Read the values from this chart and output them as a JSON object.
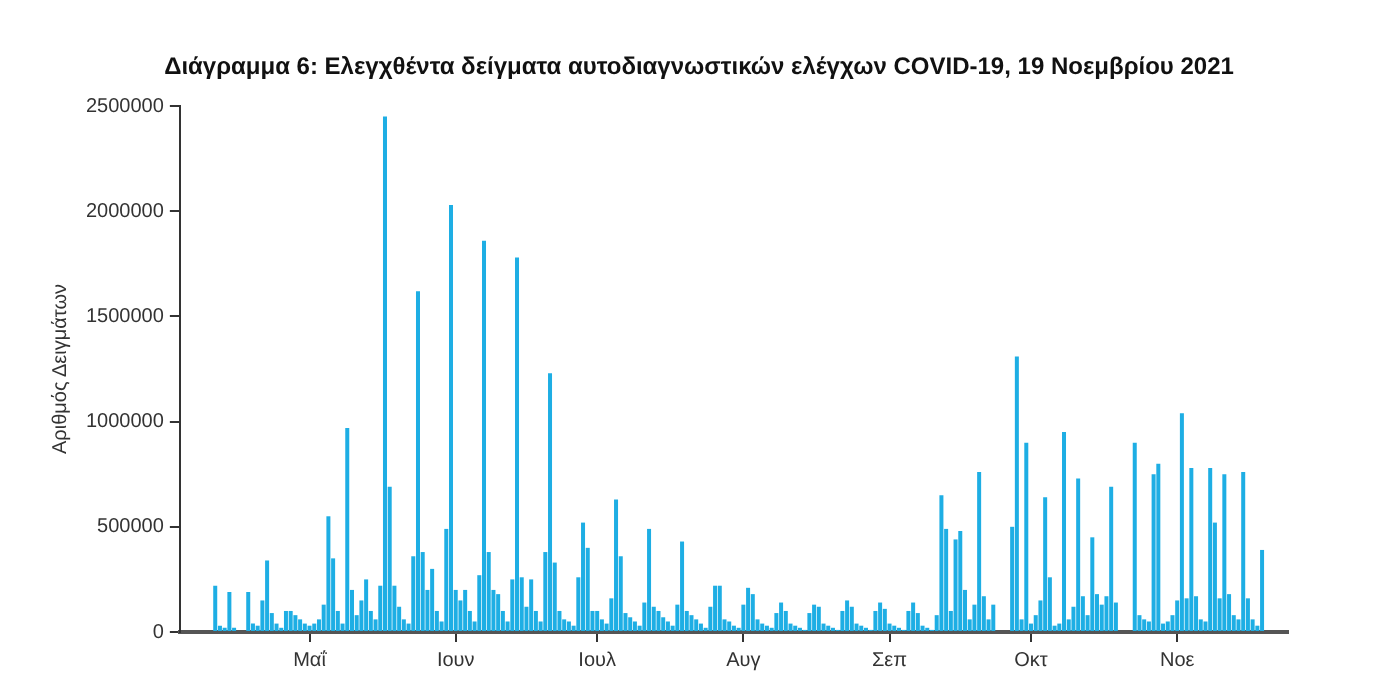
{
  "chart_data": {
    "type": "bar",
    "title": "Διάγραμμα 6: Ελεγχθέντα δείγματα αυτοδιαγνωστικών ελέγχων COVID-19, 19 Νοεμβρίου 2021",
    "ylabel": "Αριθμός Δειγμάτων",
    "color": "#1eaee4",
    "grid": false,
    "legend": false,
    "ylim": [
      0,
      2500000
    ],
    "yticks": [
      0,
      500000,
      1000000,
      1500000,
      2000000,
      2500000
    ],
    "categories": [
      null,
      null,
      null,
      null,
      null,
      null,
      null,
      null,
      null,
      null,
      null,
      null,
      null,
      null,
      null,
      null,
      null,
      null,
      null,
      null,
      null,
      null,
      null,
      null,
      null,
      null,
      null,
      "Μαΐ",
      null,
      null,
      null,
      null,
      null,
      null,
      null,
      null,
      null,
      null,
      null,
      null,
      null,
      null,
      null,
      null,
      null,
      null,
      null,
      null,
      null,
      null,
      null,
      null,
      null,
      null,
      null,
      null,
      null,
      null,
      "Ιουν",
      null,
      null,
      null,
      null,
      null,
      null,
      null,
      null,
      null,
      null,
      null,
      null,
      null,
      null,
      null,
      null,
      null,
      null,
      null,
      null,
      null,
      null,
      null,
      null,
      null,
      null,
      null,
      null,
      null,
      "Ιουλ",
      null,
      null,
      null,
      null,
      null,
      null,
      null,
      null,
      null,
      null,
      null,
      null,
      null,
      null,
      null,
      null,
      null,
      null,
      null,
      null,
      null,
      null,
      null,
      null,
      null,
      null,
      null,
      null,
      null,
      null,
      "Αυγ",
      null,
      null,
      null,
      null,
      null,
      null,
      null,
      null,
      null,
      null,
      null,
      null,
      null,
      null,
      null,
      null,
      null,
      null,
      null,
      null,
      null,
      null,
      null,
      null,
      null,
      null,
      null,
      null,
      null,
      null,
      "Σεπ",
      null,
      null,
      null,
      null,
      null,
      null,
      null,
      null,
      null,
      null,
      null,
      null,
      null,
      null,
      null,
      null,
      null,
      null,
      null,
      null,
      null,
      null,
      null,
      null,
      null,
      null,
      null,
      null,
      null,
      "Οκτ",
      null,
      null,
      null,
      null,
      null,
      null,
      null,
      null,
      null,
      null,
      null,
      null,
      null,
      null,
      null,
      null,
      null,
      null,
      null,
      null,
      null,
      null,
      null,
      null,
      null,
      null,
      null,
      null,
      null,
      null,
      "Νοε",
      null,
      null,
      null,
      null,
      null,
      null,
      null,
      null,
      null,
      null,
      null,
      null,
      null,
      null,
      null,
      null,
      null,
      null,
      null,
      null,
      null,
      null,
      null
    ],
    "values": [
      null,
      null,
      null,
      null,
      null,
      null,
      null,
      220000,
      30000,
      20000,
      190000,
      20000,
      0,
      0,
      190000,
      40000,
      30000,
      150000,
      340000,
      90000,
      40000,
      20000,
      100000,
      100000,
      80000,
      60000,
      40000,
      30000,
      40000,
      60000,
      130000,
      550000,
      350000,
      100000,
      40000,
      970000,
      200000,
      80000,
      150000,
      250000,
      100000,
      60000,
      220000,
      2450000,
      690000,
      220000,
      120000,
      60000,
      40000,
      360000,
      1620000,
      380000,
      200000,
      300000,
      100000,
      50000,
      490000,
      2030000,
      200000,
      150000,
      200000,
      100000,
      50000,
      270000,
      1860000,
      380000,
      200000,
      180000,
      100000,
      50000,
      250000,
      1780000,
      260000,
      120000,
      250000,
      100000,
      50000,
      380000,
      1230000,
      330000,
      100000,
      60000,
      50000,
      30000,
      260000,
      520000,
      400000,
      100000,
      100000,
      60000,
      40000,
      160000,
      630000,
      360000,
      90000,
      70000,
      50000,
      30000,
      140000,
      490000,
      120000,
      100000,
      70000,
      50000,
      30000,
      130000,
      430000,
      100000,
      80000,
      60000,
      40000,
      20000,
      120000,
      220000,
      220000,
      60000,
      50000,
      30000,
      20000,
      130000,
      210000,
      180000,
      60000,
      40000,
      30000,
      20000,
      90000,
      140000,
      100000,
      40000,
      30000,
      20000,
      10000,
      90000,
      130000,
      120000,
      40000,
      30000,
      20000,
      10000,
      100000,
      150000,
      120000,
      40000,
      30000,
      20000,
      10000,
      100000,
      140000,
      110000,
      40000,
      30000,
      20000,
      10000,
      100000,
      140000,
      90000,
      30000,
      20000,
      10000,
      80000,
      650000,
      490000,
      100000,
      440000,
      480000,
      200000,
      60000,
      130000,
      760000,
      170000,
      60000,
      130000,
      0,
      0,
      0,
      500000,
      1310000,
      60000,
      900000,
      40000,
      80000,
      150000,
      640000,
      260000,
      30000,
      40000,
      950000,
      60000,
      120000,
      730000,
      170000,
      80000,
      450000,
      180000,
      130000,
      170000,
      690000,
      140000,
      0,
      0,
      0,
      900000,
      80000,
      60000,
      50000,
      750000,
      800000,
      40000,
      50000,
      80000,
      150000,
      1040000,
      160000,
      780000,
      170000,
      60000,
      50000,
      780000,
      520000,
      160000,
      750000,
      180000,
      80000,
      60000,
      760000,
      160000,
      60000,
      30000,
      390000,
      null,
      null,
      null,
      null,
      null
    ]
  }
}
